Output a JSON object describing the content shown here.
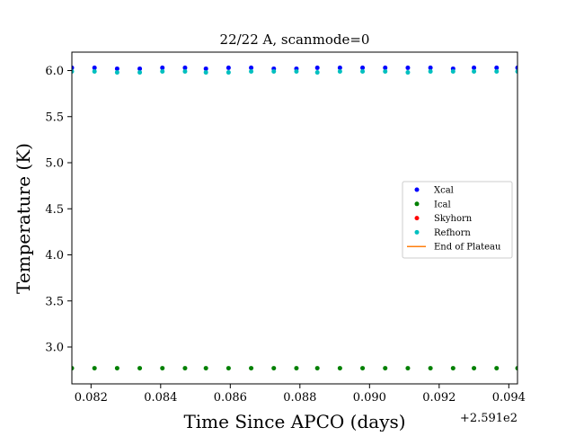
{
  "chart_data": {
    "type": "scatter",
    "title": "22/22 A, scanmode=0",
    "xlabel": "Time Since APCO (days)",
    "ylabel": "Temperature (K)",
    "x_offset_label": "+2.591e2",
    "xlim": [
      0.08145,
      0.09425
    ],
    "ylim": [
      2.6,
      6.2
    ],
    "x_ticks": [
      0.082,
      0.084,
      0.086,
      0.088,
      0.09,
      0.092,
      0.094
    ],
    "x_tick_labels": [
      "0.082",
      "0.084",
      "0.086",
      "0.088",
      "0.090",
      "0.092",
      "0.094"
    ],
    "y_ticks": [
      3.0,
      3.5,
      4.0,
      4.5,
      5.0,
      5.5,
      6.0
    ],
    "y_tick_labels": [
      "3.0",
      "3.5",
      "4.0",
      "4.5",
      "5.0",
      "5.5",
      "6.0"
    ],
    "grid": false,
    "legend_position": "center-right",
    "x": [
      0.08145,
      0.0821,
      0.08275,
      0.0834,
      0.08405,
      0.0847,
      0.0853,
      0.08595,
      0.0866,
      0.08725,
      0.0879,
      0.0885,
      0.08915,
      0.0898,
      0.09045,
      0.0911,
      0.09175,
      0.0924,
      0.093,
      0.09365,
      0.09425
    ],
    "series": [
      {
        "name": "Xcal",
        "color": "#0000ff",
        "marker": "dot",
        "values": [
          6.03,
          6.03,
          6.02,
          6.02,
          6.03,
          6.03,
          6.02,
          6.03,
          6.03,
          6.02,
          6.02,
          6.03,
          6.03,
          6.03,
          6.03,
          6.03,
          6.03,
          6.02,
          6.03,
          6.03,
          6.03
        ]
      },
      {
        "name": "Ical",
        "color": "#008000",
        "marker": "dot",
        "values": [
          2.77,
          2.77,
          2.77,
          2.77,
          2.77,
          2.77,
          2.77,
          2.77,
          2.77,
          2.77,
          2.77,
          2.77,
          2.77,
          2.77,
          2.77,
          2.77,
          2.77,
          2.77,
          2.77,
          2.77,
          2.77
        ]
      },
      {
        "name": "Skyhorn",
        "color": "#ff0000",
        "marker": "dot",
        "values": []
      },
      {
        "name": "Refhorn",
        "color": "#00bfbf",
        "marker": "dot",
        "values": [
          5.99,
          5.99,
          5.98,
          5.98,
          5.99,
          5.99,
          5.98,
          5.98,
          5.99,
          5.99,
          5.99,
          5.98,
          5.99,
          5.99,
          5.99,
          5.98,
          5.99,
          5.99,
          5.99,
          5.99,
          5.99
        ]
      },
      {
        "name": "End of Plateau",
        "color": "#ff7f0e",
        "marker": "line",
        "values": []
      }
    ]
  }
}
